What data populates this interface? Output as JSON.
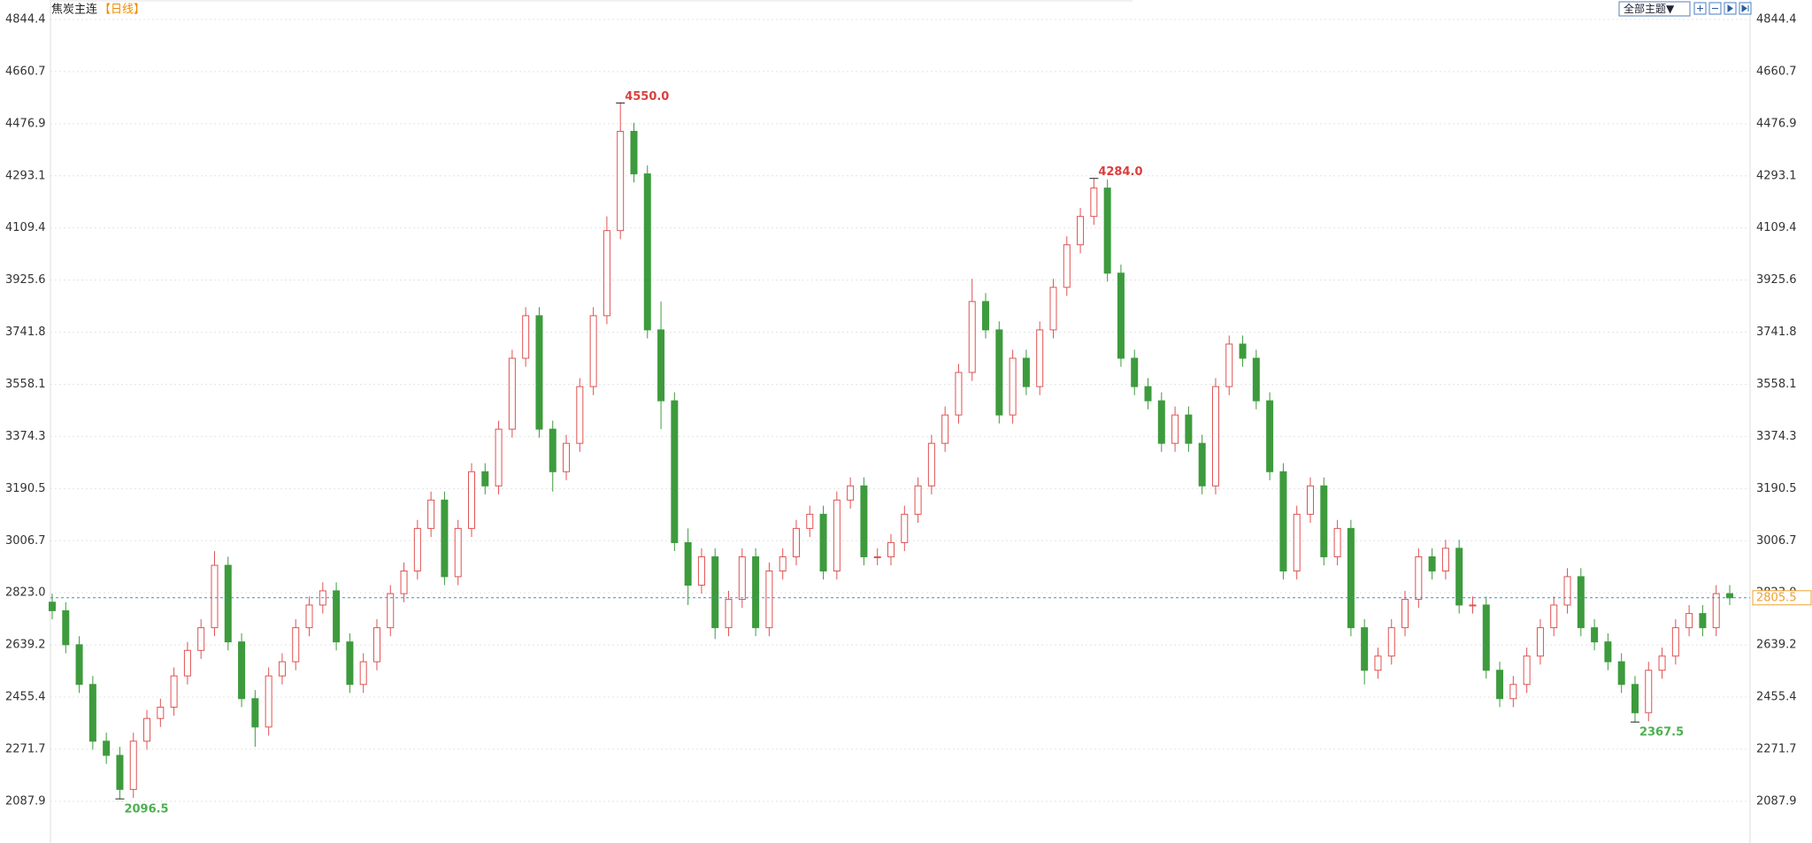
{
  "chart_data": {
    "type": "candlestick",
    "title": "焦炭主连",
    "period": "【日线】",
    "theme_button": "全部主题▼",
    "ylim": [
      1941,
      4913
    ],
    "yticks": [
      2087.9,
      2271.7,
      2455.4,
      2639.2,
      {
        "value": 2823,
        "label": "2823.0"
      },
      3006.7,
      3190.5,
      3374.3,
      3558.1,
      3741.8,
      3925.6,
      4109.4,
      4293.1,
      4476.9,
      4660.7,
      4844.4
    ],
    "grid": true,
    "up_color": "#e05252",
    "down_color": "#3d9b3d",
    "open": [
      2790,
      2760,
      2640,
      2500,
      2300,
      2250,
      2130,
      2300,
      2380,
      2420,
      2530,
      2620,
      2700,
      2920,
      2650,
      2450,
      2350,
      2530,
      2580,
      2700,
      2780,
      2830,
      2650,
      2500,
      2580,
      2700,
      2820,
      2900,
      3050,
      3150,
      2880,
      3050,
      3250,
      3200,
      3400,
      3650,
      3800,
      3400,
      3250,
      3350,
      3550,
      3800,
      4100,
      4450,
      4300,
      3750,
      3500,
      3000,
      2850,
      2950,
      2700,
      2800,
      2950,
      2700,
      2900,
      2950,
      3050,
      3100,
      2900,
      3150,
      3200,
      2950,
      2950,
      3000,
      3100,
      3200,
      3350,
      3450,
      3600,
      3850,
      3750,
      3450,
      3650,
      3550,
      3750,
      3900,
      4050,
      4150,
      4250,
      3950,
      3650,
      3550,
      3500,
      3350,
      3450,
      3350,
      3200,
      3550,
      3700,
      3650,
      3500,
      3250,
      2900,
      3100,
      3200,
      2950,
      3050,
      2700,
      2550,
      2600,
      2700,
      2800,
      2950,
      2900,
      2980,
      2780,
      2780,
      2550,
      2450,
      2500,
      2600,
      2700,
      2780,
      2880,
      2700,
      2650,
      2580,
      2500,
      2400,
      2550,
      2600,
      2700,
      2750,
      2700,
      2820
    ],
    "high": [
      2820,
      2790,
      2670,
      2530,
      2330,
      2280,
      2330,
      2410,
      2450,
      2560,
      2650,
      2730,
      2970,
      2950,
      2680,
      2480,
      2560,
      2610,
      2730,
      2810,
      2860,
      2860,
      2680,
      2610,
      2730,
      2850,
      2930,
      3080,
      3180,
      3180,
      3080,
      3280,
      3280,
      3430,
      3680,
      3830,
      3830,
      3430,
      3380,
      3580,
      3830,
      4150,
      4550,
      4480,
      4330,
      3850,
      3530,
      3050,
      2980,
      2980,
      2830,
      2980,
      2980,
      2930,
      2980,
      3080,
      3130,
      3130,
      3180,
      3230,
      3230,
      2980,
      3030,
      3130,
      3230,
      3380,
      3480,
      3630,
      3930,
      3880,
      3780,
      3680,
      3680,
      3780,
      3930,
      4080,
      4180,
      4284,
      4280,
      3980,
      3680,
      3580,
      3530,
      3480,
      3480,
      3380,
      3580,
      3730,
      3730,
      3680,
      3530,
      3280,
      3130,
      3230,
      3230,
      3080,
      3080,
      2730,
      2630,
      2730,
      2830,
      2980,
      2980,
      3010,
      3010,
      2810,
      2810,
      2580,
      2530,
      2630,
      2730,
      2810,
      2910,
      2910,
      2730,
      2680,
      2610,
      2530,
      2580,
      2630,
      2730,
      2780,
      2780,
      2850,
      2850
    ],
    "low": [
      2730,
      2610,
      2470,
      2270,
      2220,
      2096.5,
      2100,
      2270,
      2350,
      2390,
      2500,
      2590,
      2670,
      2620,
      2420,
      2280,
      2320,
      2500,
      2550,
      2670,
      2750,
      2620,
      2470,
      2470,
      2550,
      2670,
      2790,
      2870,
      3020,
      2850,
      2850,
      3020,
      3170,
      3170,
      3370,
      3620,
      3370,
      3180,
      3220,
      3320,
      3520,
      3770,
      4070,
      4270,
      3720,
      3400,
      2970,
      2780,
      2820,
      2660,
      2670,
      2770,
      2670,
      2670,
      2870,
      2920,
      3020,
      2870,
      2870,
      3120,
      2920,
      2920,
      2920,
      2970,
      3070,
      3170,
      3320,
      3420,
      3570,
      3720,
      3420,
      3420,
      3520,
      3520,
      3720,
      3870,
      4020,
      4120,
      3920,
      3620,
      3520,
      3470,
      3320,
      3320,
      3320,
      3170,
      3170,
      3520,
      3620,
      3470,
      3220,
      2870,
      2870,
      3070,
      2920,
      2920,
      2670,
      2500,
      2520,
      2570,
      2670,
      2770,
      2870,
      2870,
      2750,
      2750,
      2520,
      2420,
      2420,
      2470,
      2570,
      2670,
      2750,
      2670,
      2620,
      2550,
      2470,
      2367.5,
      2370,
      2520,
      2570,
      2670,
      2670,
      2670,
      2780
    ],
    "close": [
      2760,
      2640,
      2500,
      2300,
      2250,
      2130,
      2300,
      2380,
      2420,
      2530,
      2620,
      2700,
      2920,
      2650,
      2450,
      2350,
      2530,
      2580,
      2700,
      2780,
      2830,
      2650,
      2500,
      2580,
      2700,
      2820,
      2900,
      3050,
      3150,
      2880,
      3050,
      3250,
      3200,
      3400,
      3650,
      3800,
      3400,
      3250,
      3350,
      3550,
      3800,
      4100,
      4450,
      4300,
      3750,
      3500,
      3000,
      2850,
      2950,
      2700,
      2800,
      2950,
      2700,
      2900,
      2950,
      3050,
      3100,
      2900,
      3150,
      3200,
      2950,
      2950,
      3000,
      3100,
      3200,
      3350,
      3450,
      3600,
      3850,
      3750,
      3450,
      3650,
      3550,
      3750,
      3900,
      4050,
      4150,
      4250,
      3950,
      3650,
      3550,
      3500,
      3350,
      3450,
      3350,
      3200,
      3550,
      3700,
      3650,
      3500,
      3250,
      2900,
      3100,
      3200,
      2950,
      3050,
      2700,
      2550,
      2600,
      2700,
      2800,
      2950,
      2900,
      2980,
      2780,
      2780,
      2550,
      2450,
      2500,
      2600,
      2700,
      2780,
      2880,
      2700,
      2650,
      2580,
      2500,
      2400,
      2550,
      2600,
      2700,
      2750,
      2700,
      2820,
      2805.5
    ],
    "annotations": [
      {
        "value": 4550,
        "label": "4550.0",
        "color": "#d9403e"
      },
      {
        "value": 4284,
        "label": "4284.0",
        "color": "#d9403e"
      },
      {
        "value": 2096.5,
        "color": "#4caf50"
      },
      {
        "value": 2367.5,
        "color": "#4caf50"
      }
    ],
    "last_price": 2805.5,
    "last_price_color": "#f0a030",
    "last_line_color": "#3b8fd0"
  }
}
